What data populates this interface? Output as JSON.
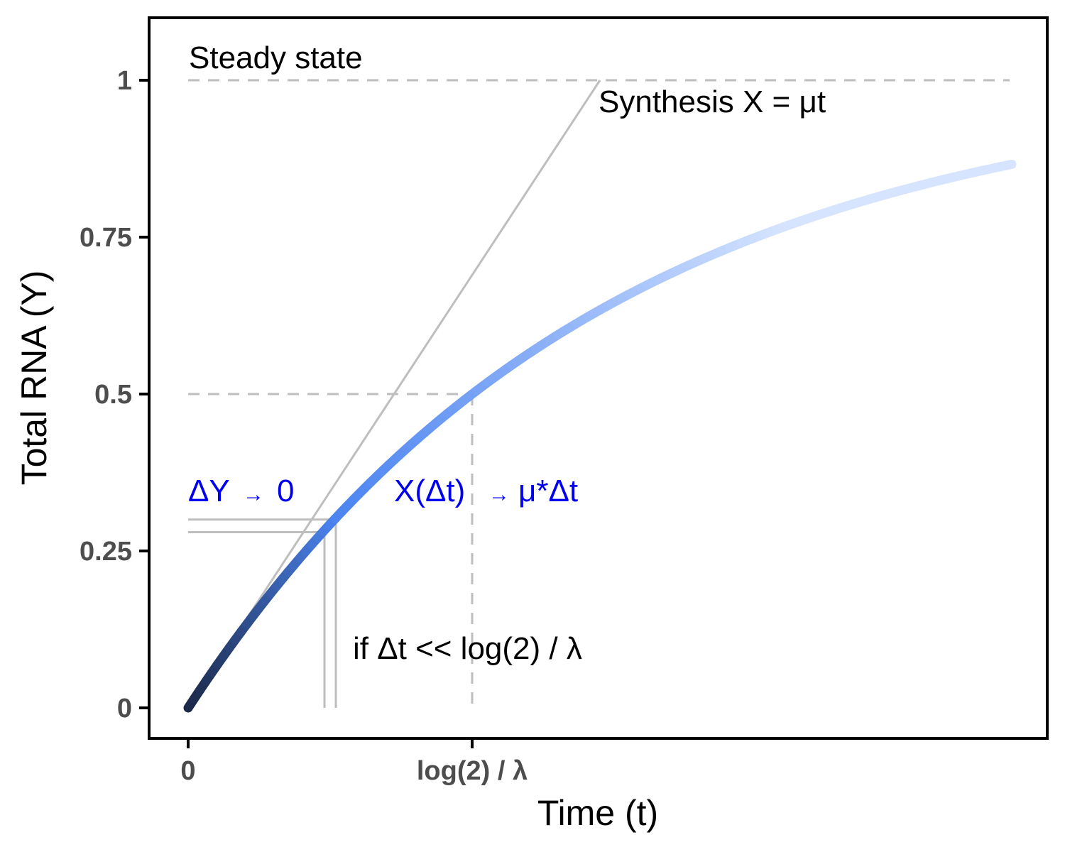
{
  "chart_data": {
    "type": "line",
    "xlabel": "Time (t)",
    "ylabel": "Total RNA (Y)",
    "x_ticks": [
      "0",
      "log(2) / λ"
    ],
    "y_ticks": [
      "0",
      "0.25",
      "0.5",
      "0.75",
      "1"
    ],
    "y_tick_values": [
      0,
      0.25,
      0.5,
      0.75,
      1
    ],
    "ylim": [
      -0.05,
      1.1
    ],
    "x_range_half_lives": [
      0,
      2.9
    ],
    "grid": false,
    "series": [
      {
        "model": "Y = 1 - exp(-λ t)",
        "x_half_lives": [
          0,
          0.25,
          0.5,
          0.75,
          1,
          1.25,
          1.5,
          1.75,
          2,
          2.25,
          2.5,
          2.75,
          2.9
        ],
        "values": [
          0,
          0.159,
          0.293,
          0.405,
          0.5,
          0.58,
          0.646,
          0.703,
          0.75,
          0.79,
          0.823,
          0.851,
          0.866
        ],
        "color_start": "#1b2a4a",
        "color_mid": "#4c84f0",
        "color_end": "#d6e4ff"
      }
    ],
    "reference_lines": {
      "synthesis_line": {
        "label": "Synthesis X = μt",
        "y_start": 0,
        "y_end": 1,
        "x_end_half_lives": 1.45
      },
      "steady_state": {
        "label": "Steady state",
        "y": 1
      },
      "half_level": {
        "y": 0.5,
        "x_half_lives": 1
      },
      "delta_levels": [
        0.28,
        0.3
      ],
      "delta_t_half_lives": [
        0.48,
        0.52
      ]
    },
    "annotations": {
      "delta_y": {
        "left": "ΔY",
        "arrow": "→",
        "right": "0"
      },
      "x_delta": {
        "left": "X(Δt)",
        "arrow": "→",
        "right": "μ*Δt"
      },
      "condition": "if Δt << log(2) / λ"
    },
    "colors": {
      "reference_gray": "#bebebe",
      "annotation_blue": "#0000ee",
      "tick_text": "#4d4d4d"
    }
  }
}
